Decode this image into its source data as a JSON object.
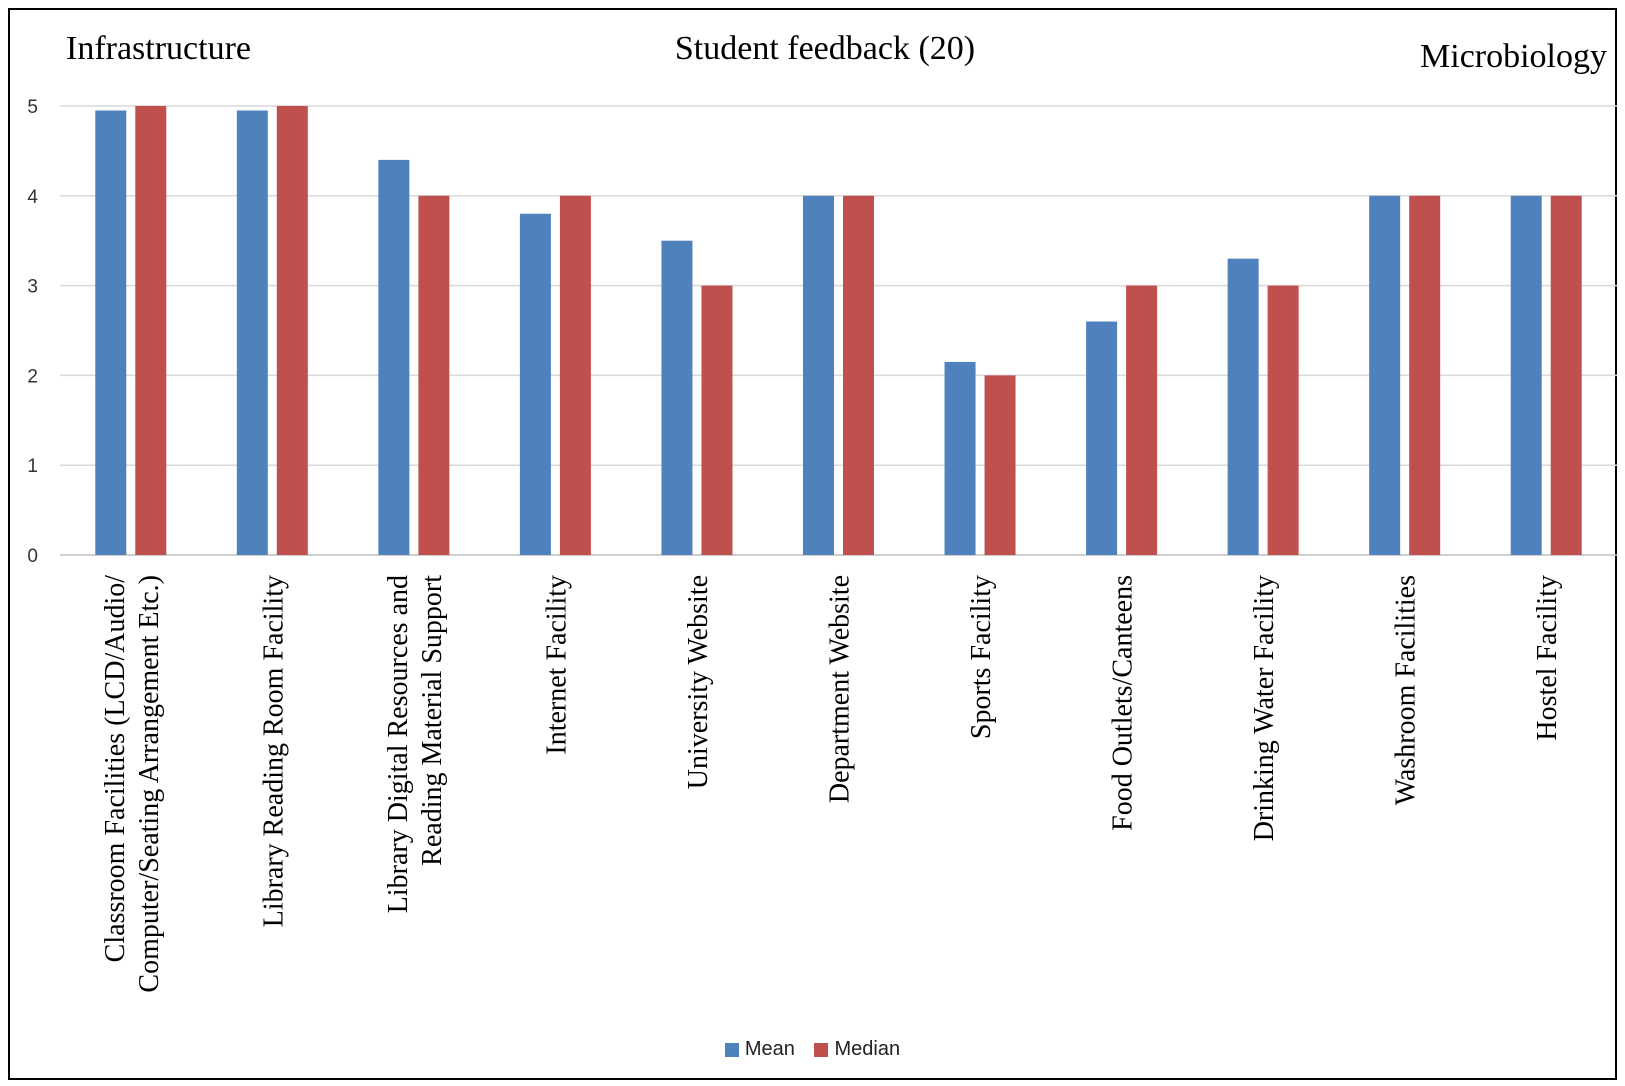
{
  "chart_data": {
    "type": "bar",
    "title": "Student feedback (20)",
    "title_left": "Infrastructure",
    "title_right": "Microbiology",
    "categories": [
      "Classroom Facilities (LCD/Audio/ Computer/Seating Arrangement Etc.)",
      "Library Reading Room Facility",
      "Library Digital Resources and Reading Material Support",
      "Internet Facility",
      "University Website",
      "Department Website",
      "Sports Facility",
      "Food Outlets/Canteens",
      "Drinking Water Facility",
      "Washroom Facilities",
      "Hostel Facility"
    ],
    "category_lines": [
      [
        "Classroom Facilities (LCD/Audio/",
        "Computer/Seating Arrangement Etc.)"
      ],
      [
        "Library Reading Room Facility"
      ],
      [
        "Library Digital Resources and",
        "Reading Material Support"
      ],
      [
        "Internet Facility"
      ],
      [
        "University Website"
      ],
      [
        "Department Website"
      ],
      [
        "Sports Facility"
      ],
      [
        "Food Outlets/Canteens"
      ],
      [
        "Drinking Water Facility"
      ],
      [
        "Washroom Facilities"
      ],
      [
        "Hostel Facility"
      ]
    ],
    "series": [
      {
        "name": "Mean",
        "color": "#4F81BD",
        "values": [
          4.95,
          4.95,
          4.4,
          3.8,
          3.5,
          4,
          2.15,
          2.6,
          3.3,
          4,
          4
        ]
      },
      {
        "name": "Median",
        "color": "#C0504D",
        "values": [
          5,
          5,
          4,
          4,
          3,
          4,
          2,
          3,
          3,
          4,
          4
        ]
      }
    ],
    "ylim": [
      0,
      5
    ],
    "yticks": [
      "0",
      "1",
      "2",
      "3",
      "4",
      "5"
    ],
    "grid": true,
    "legend": "bottom-center"
  }
}
